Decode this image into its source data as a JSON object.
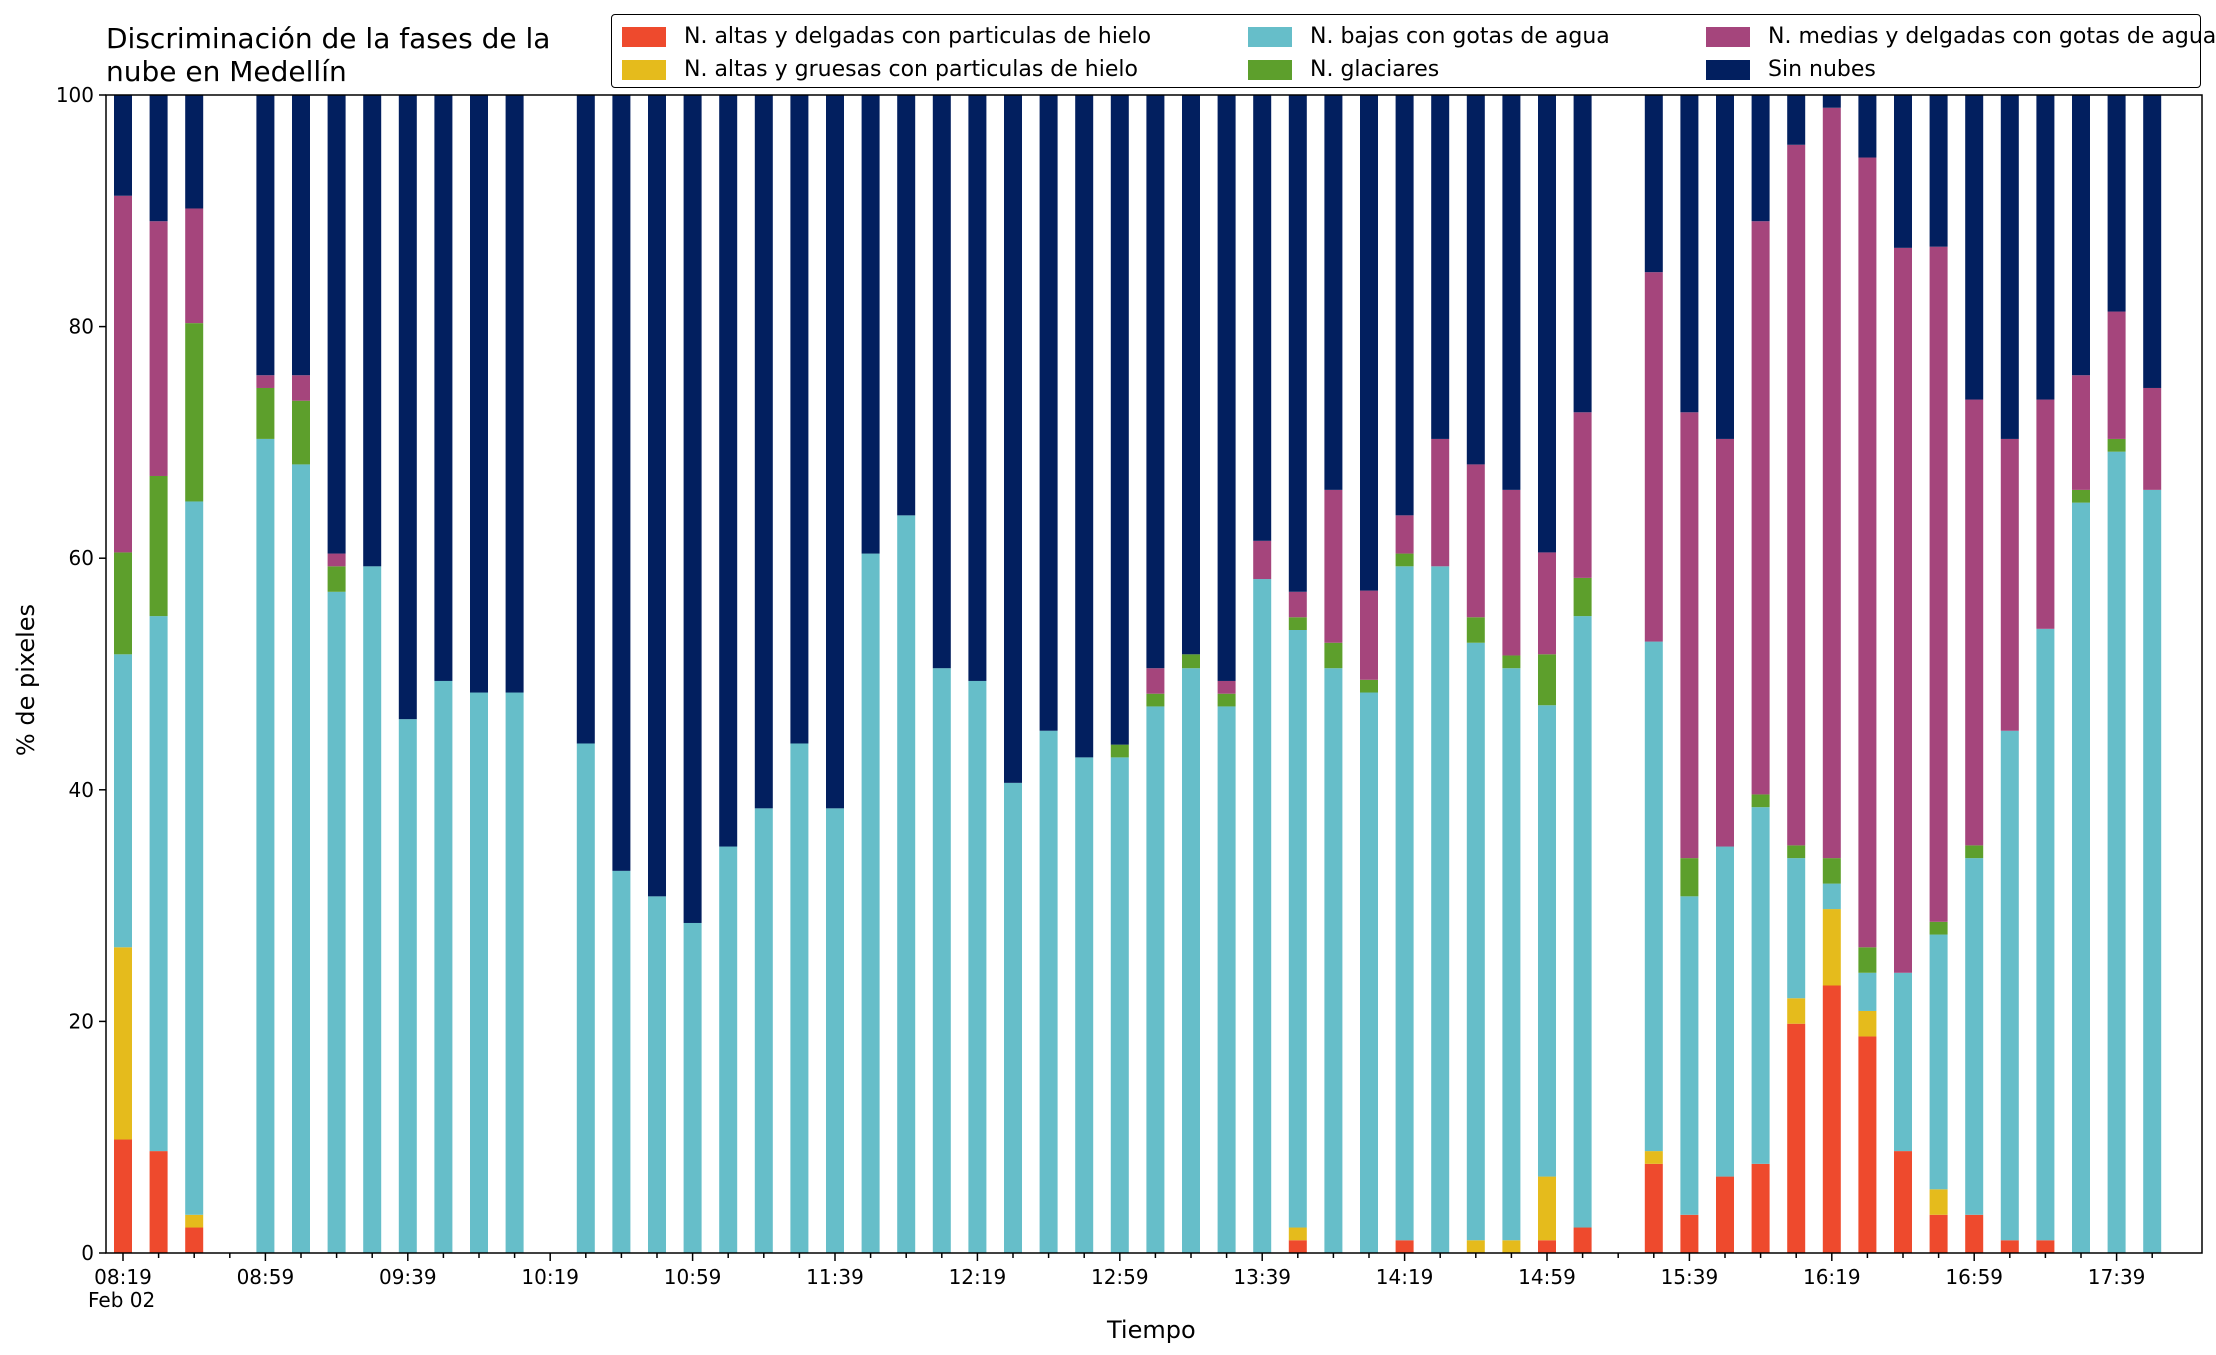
{
  "chart_data": {
    "type": "bar",
    "stacked": true,
    "title": "Discriminación de la fases de la nube en Medellín",
    "xlabel": "Tiempo",
    "ylabel": "% de pixeles",
    "ylim": [
      0,
      100
    ],
    "yticks": [
      0,
      20,
      40,
      60,
      80,
      100
    ],
    "xtick_labels": [
      "08:19",
      "08:59",
      "09:39",
      "10:19",
      "10:59",
      "11:39",
      "12:19",
      "12:59",
      "13:39",
      "14:19",
      "14:59",
      "15:39",
      "16:19",
      "16:59",
      "17:39"
    ],
    "date_label": "Feb 02",
    "legend_position": "top-right",
    "x": [
      "08:19",
      "08:29",
      "08:39",
      "08:49",
      "08:59",
      "09:09",
      "09:19",
      "09:29",
      "09:39",
      "09:49",
      "09:59",
      "10:09",
      "10:19",
      "10:29",
      "10:39",
      "10:49",
      "10:59",
      "11:09",
      "11:19",
      "11:29",
      "11:39",
      "11:49",
      "11:59",
      "12:09",
      "12:19",
      "12:29",
      "12:39",
      "12:49",
      "12:59",
      "13:09",
      "13:19",
      "13:29",
      "13:39",
      "13:49",
      "13:59",
      "14:09",
      "14:19",
      "14:29",
      "14:39",
      "14:49",
      "14:59",
      "15:09",
      "15:19",
      "15:29",
      "15:39",
      "15:49",
      "15:59",
      "16:09",
      "16:19",
      "16:29",
      "16:39",
      "16:49",
      "16:59",
      "17:09",
      "17:19",
      "17:29",
      "17:39",
      "17:49"
    ],
    "series": [
      {
        "name": "N. altas y delgadas con particulas de hielo",
        "color": "#ee4a2d",
        "values": [
          9.8,
          8.8,
          2.2,
          null,
          0,
          0,
          0,
          0,
          0,
          0,
          0,
          0,
          null,
          0,
          0,
          0,
          0,
          0,
          0,
          0,
          0,
          0,
          0,
          0,
          0,
          0,
          0,
          0,
          0,
          0,
          0,
          0,
          0,
          1.1,
          0,
          0,
          1.1,
          0,
          0,
          0,
          1.1,
          2.2,
          null,
          7.7,
          3.3,
          6.6,
          7.7,
          19.8,
          23.1,
          18.7,
          8.8,
          3.3,
          3.3,
          1.1,
          1.1,
          0,
          0,
          0
        ]
      },
      {
        "name": "N. altas y gruesas con particulas de hielo",
        "color": "#e5bb1c",
        "values": [
          16.6,
          0,
          1.1,
          null,
          0,
          0,
          0,
          0,
          0,
          0,
          0,
          0,
          null,
          0,
          0,
          0,
          0,
          0,
          0,
          0,
          0,
          0,
          0,
          0,
          0,
          0,
          0,
          0,
          0,
          0,
          0,
          0,
          0,
          1.1,
          0,
          0,
          0,
          0,
          1.1,
          1.1,
          5.5,
          0,
          null,
          1.1,
          0,
          0,
          0,
          2.2,
          6.6,
          2.2,
          0,
          2.2,
          0,
          0,
          0,
          0,
          0,
          0
        ]
      },
      {
        "name": "N. bajas con gotas de agua",
        "color": "#66bec9",
        "values": [
          25.3,
          46.2,
          61.6,
          null,
          70.3,
          68.1,
          57.1,
          59.3,
          46.1,
          49.4,
          48.4,
          48.4,
          null,
          44.0,
          33.0,
          30.8,
          28.5,
          35.1,
          38.4,
          44.0,
          38.4,
          60.4,
          63.7,
          50.5,
          49.4,
          40.6,
          45.1,
          42.8,
          42.8,
          47.2,
          50.5,
          47.2,
          58.2,
          51.6,
          50.5,
          48.4,
          58.2,
          59.3,
          51.6,
          49.4,
          40.7,
          52.8,
          null,
          44.0,
          27.5,
          28.5,
          30.8,
          12.1,
          2.2,
          3.3,
          15.4,
          22.0,
          30.8,
          44.0,
          52.8,
          64.8,
          69.2,
          65.9
        ]
      },
      {
        "name": "N. glaciares",
        "color": "#5d9f2c",
        "values": [
          8.8,
          12.1,
          15.4,
          null,
          4.4,
          5.5,
          2.2,
          0,
          0,
          0,
          0,
          0,
          null,
          0,
          0,
          0,
          0,
          0,
          0,
          0,
          0,
          0,
          0,
          0,
          0,
          0,
          0,
          0,
          1.1,
          1.1,
          1.2,
          1.1,
          0,
          1.1,
          2.2,
          1.1,
          1.1,
          0,
          2.2,
          1.1,
          4.4,
          3.3,
          null,
          0,
          3.3,
          0,
          1.1,
          1.1,
          2.2,
          2.2,
          0,
          1.1,
          1.1,
          0,
          0,
          1.1,
          1.1,
          0
        ]
      },
      {
        "name": "N. medias y delgadas con gotas de agua",
        "color": "#a5457c",
        "values": [
          30.8,
          22.0,
          9.9,
          null,
          1.1,
          2.2,
          1.1,
          0,
          0,
          0,
          0,
          0,
          null,
          0,
          0,
          0,
          0,
          0,
          0,
          0,
          0,
          0,
          0,
          0,
          0,
          0,
          0,
          0,
          0,
          2.2,
          0,
          1.1,
          3.3,
          2.2,
          13.2,
          7.7,
          3.3,
          11.0,
          13.2,
          14.3,
          8.8,
          14.3,
          null,
          31.9,
          38.5,
          35.2,
          49.5,
          60.5,
          64.8,
          68.2,
          62.6,
          58.3,
          38.5,
          25.2,
          19.8,
          9.9,
          11.0,
          8.8
        ]
      },
      {
        "name": "Sin nubes",
        "color": "#021f5f",
        "values": [
          8.7,
          10.9,
          9.8,
          null,
          24.2,
          24.2,
          39.6,
          40.7,
          53.9,
          50.6,
          51.6,
          51.6,
          null,
          56.0,
          67.0,
          69.2,
          71.5,
          64.9,
          61.6,
          56.0,
          61.6,
          39.6,
          36.3,
          49.5,
          50.6,
          59.4,
          54.9,
          57.2,
          56.1,
          49.5,
          48.3,
          50.6,
          38.5,
          42.9,
          34.1,
          42.8,
          36.3,
          29.7,
          31.9,
          34.1,
          39.5,
          27.4,
          null,
          15.3,
          27.4,
          29.7,
          10.9,
          4.3,
          1.1,
          5.4,
          13.2,
          13.1,
          26.3,
          29.7,
          26.3,
          24.2,
          18.7,
          25.3
        ]
      }
    ]
  }
}
